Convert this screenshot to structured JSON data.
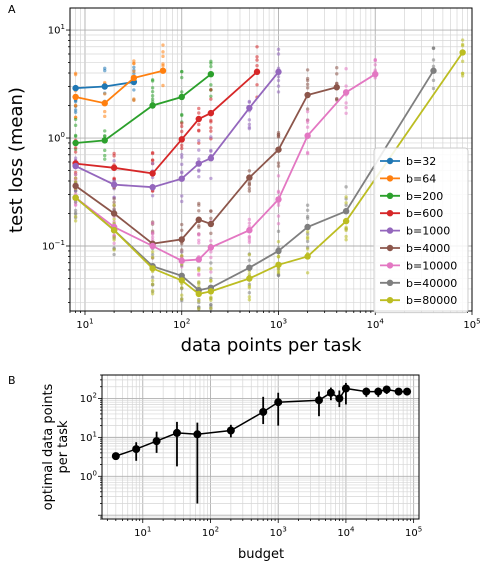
{
  "panel_labels": {
    "a": "A",
    "b": "B"
  },
  "chart_data": [
    {
      "type": "line",
      "xlabel": "data points per task",
      "ylabel": "test loss (mean)",
      "xscale": "log",
      "yscale": "log",
      "xlim": [
        7,
        100000
      ],
      "ylim": [
        0.025,
        16
      ],
      "xtick_values": [
        10,
        100,
        1000,
        10000,
        100000
      ],
      "xtick_labels": [
        {
          "base": "10",
          "exp": "1"
        },
        {
          "base": "10",
          "exp": "2"
        },
        {
          "base": "10",
          "exp": "3"
        },
        {
          "base": "10",
          "exp": "4"
        },
        {
          "base": "10",
          "exp": "5"
        }
      ],
      "ytick_values": [
        0.1,
        1,
        10
      ],
      "ytick_labels": [
        {
          "base": "10",
          "exp": "−1"
        },
        {
          "base": "10",
          "exp": "0"
        },
        {
          "base": "10",
          "exp": "1"
        }
      ],
      "grid": true,
      "legend_position": "right",
      "series": [
        {
          "name": "b=32",
          "color": "#1f77b4",
          "x": [
            8,
            16,
            32
          ],
          "y": [
            2.9,
            3.0,
            3.3
          ]
        },
        {
          "name": "b=64",
          "color": "#ff7f0e",
          "x": [
            8,
            16,
            32,
            64
          ],
          "y": [
            2.4,
            2.1,
            3.6,
            4.2
          ]
        },
        {
          "name": "b=200",
          "color": "#2ca02c",
          "x": [
            8,
            16,
            50,
            100,
            200
          ],
          "y": [
            0.9,
            0.95,
            2.0,
            2.4,
            3.9
          ]
        },
        {
          "name": "b=600",
          "color": "#d62728",
          "x": [
            8,
            20,
            50,
            100,
            150,
            200,
            600
          ],
          "y": [
            0.58,
            0.53,
            0.47,
            0.97,
            1.5,
            1.7,
            4.1
          ]
        },
        {
          "name": "b=1000",
          "color": "#9467bd",
          "x": [
            8,
            20,
            50,
            100,
            150,
            200,
            500,
            1000
          ],
          "y": [
            0.55,
            0.37,
            0.35,
            0.42,
            0.58,
            0.65,
            1.9,
            4.1
          ]
        },
        {
          "name": "b=4000",
          "color": "#8c564b",
          "x": [
            8,
            20,
            50,
            100,
            150,
            200,
            500,
            1000,
            2000,
            4000
          ],
          "y": [
            0.36,
            0.2,
            0.105,
            0.115,
            0.175,
            0.16,
            0.43,
            0.78,
            2.5,
            2.95
          ]
        },
        {
          "name": "b=10000",
          "color": "#e377c2",
          "x": [
            8,
            20,
            50,
            100,
            150,
            200,
            500,
            1000,
            2000,
            5000,
            10000
          ],
          "y": [
            0.28,
            0.15,
            0.1,
            0.073,
            0.075,
            0.097,
            0.14,
            0.27,
            1.05,
            2.65,
            3.9
          ]
        },
        {
          "name": "b=40000",
          "color": "#7f7f7f",
          "x": [
            8,
            20,
            50,
            100,
            150,
            200,
            500,
            1000,
            2000,
            5000,
            40000
          ],
          "y": [
            0.28,
            0.14,
            0.065,
            0.053,
            0.039,
            0.041,
            0.063,
            0.09,
            0.15,
            0.21,
            4.2
          ]
        },
        {
          "name": "b=80000",
          "color": "#bcbd22",
          "x": [
            8,
            20,
            50,
            100,
            150,
            200,
            500,
            1000,
            2000,
            5000,
            80000
          ],
          "y": [
            0.28,
            0.14,
            0.062,
            0.048,
            0.036,
            0.038,
            0.05,
            0.067,
            0.08,
            0.17,
            6.2
          ]
        }
      ]
    },
    {
      "type": "line",
      "xlabel": "budget",
      "ylabel_lines": [
        "optimal data points",
        "per task"
      ],
      "xscale": "log",
      "yscale": "log",
      "xlim": [
        2.5,
        120000
      ],
      "ylim": [
        0.08,
        400
      ],
      "xtick_values": [
        10,
        100,
        1000,
        10000,
        100000
      ],
      "xtick_labels": [
        {
          "base": "10",
          "exp": "1"
        },
        {
          "base": "10",
          "exp": "2"
        },
        {
          "base": "10",
          "exp": "3"
        },
        {
          "base": "10",
          "exp": "4"
        },
        {
          "base": "10",
          "exp": "5"
        }
      ],
      "ytick_values": [
        1,
        10,
        100
      ],
      "ytick_labels": [
        {
          "base": "10",
          "exp": "0"
        },
        {
          "base": "10",
          "exp": "1"
        },
        {
          "base": "10",
          "exp": "2"
        }
      ],
      "grid": true,
      "color": "#000000",
      "points": [
        {
          "x": 4,
          "y": 3.3,
          "ylo": 2.7,
          "yhi": 4.0
        },
        {
          "x": 8,
          "y": 5.0,
          "ylo": 2.5,
          "yhi": 7.5
        },
        {
          "x": 16,
          "y": 8.0,
          "ylo": 4.0,
          "yhi": 14
        },
        {
          "x": 32,
          "y": 13,
          "ylo": 1.8,
          "yhi": 25
        },
        {
          "x": 64,
          "y": 12,
          "ylo": 0.2,
          "yhi": 24
        },
        {
          "x": 200,
          "y": 15,
          "ylo": 10,
          "yhi": 21
        },
        {
          "x": 600,
          "y": 45,
          "ylo": 22,
          "yhi": 110
        },
        {
          "x": 1000,
          "y": 80,
          "ylo": 20,
          "yhi": 140
        },
        {
          "x": 4000,
          "y": 90,
          "ylo": 35,
          "yhi": 150
        },
        {
          "x": 6000,
          "y": 140,
          "ylo": 90,
          "yhi": 190
        },
        {
          "x": 8000,
          "y": 100,
          "ylo": 60,
          "yhi": 160
        },
        {
          "x": 10000,
          "y": 180,
          "ylo": 70,
          "yhi": 250
        },
        {
          "x": 20000,
          "y": 150,
          "ylo": 110,
          "yhi": 190
        },
        {
          "x": 30000,
          "y": 150,
          "ylo": 110,
          "yhi": 190
        },
        {
          "x": 40000,
          "y": 170,
          "ylo": 130,
          "yhi": 200
        },
        {
          "x": 60000,
          "y": 150,
          "ylo": 125,
          "yhi": 175
        },
        {
          "x": 80000,
          "y": 150,
          "ylo": 125,
          "yhi": 175
        }
      ]
    }
  ]
}
